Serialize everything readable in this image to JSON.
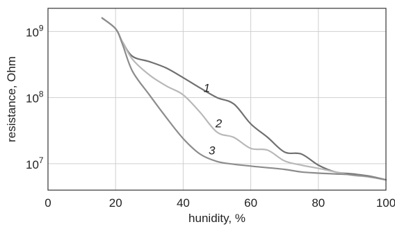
{
  "chart_data": {
    "type": "line",
    "title": "",
    "xlabel": "hunidity, %",
    "ylabel": "resistance, Ohm",
    "xlim": [
      0,
      100
    ],
    "ylim_log10": [
      6.6,
      9.35
    ],
    "y_scale": "log",
    "grid": true,
    "x_ticks": [
      0,
      20,
      40,
      60,
      80,
      100
    ],
    "y_ticks": [
      {
        "base": "10",
        "exponent": "7",
        "value": 10000000
      },
      {
        "base": "10",
        "exponent": "8",
        "value": 100000000
      },
      {
        "base": "10",
        "exponent": "9",
        "value": 1000000000
      }
    ],
    "series": [
      {
        "name": "1",
        "color": "#707070",
        "x": [
          16,
          20,
          22,
          25,
          30,
          35,
          40,
          45,
          50,
          55,
          60,
          65,
          70,
          75,
          80,
          85,
          90,
          95,
          100
        ],
        "y": [
          1600000000,
          1100000000,
          700000000,
          420000000,
          350000000,
          280000000,
          200000000,
          140000000,
          100000000,
          80000000,
          40000000,
          25000000,
          15000000,
          14000000,
          9500000,
          7500000,
          7000000,
          6500000,
          5700000
        ]
      },
      {
        "name": "2",
        "color": "#b8b8b8",
        "x": [
          16,
          20,
          22,
          25,
          30,
          35,
          40,
          45,
          50,
          55,
          60,
          65,
          70,
          75,
          80,
          85,
          90,
          95,
          100
        ],
        "y": [
          1600000000,
          1100000000,
          700000000,
          380000000,
          220000000,
          150000000,
          110000000,
          60000000,
          30000000,
          25000000,
          17000000,
          16000000,
          11000000,
          9500000,
          8500000,
          7500000,
          6700000,
          6300000,
          5700000
        ]
      },
      {
        "name": "3",
        "color": "#8c8c8c",
        "x": [
          16,
          20,
          22,
          25,
          30,
          35,
          40,
          45,
          50,
          55,
          60,
          65,
          70,
          75,
          80,
          85,
          90,
          95,
          100
        ],
        "y": [
          1600000000,
          1100000000,
          650000000,
          250000000,
          110000000,
          50000000,
          24000000,
          14000000,
          10800000,
          9800000,
          9200000,
          8700000,
          8200000,
          7500000,
          7200000,
          7000000,
          6800000,
          6400000,
          5700000
        ]
      }
    ],
    "curve_labels": [
      {
        "text": "1",
        "x": 47,
        "y": 140000000
      },
      {
        "text": "2",
        "x": 50.5,
        "y": 41000000
      },
      {
        "text": "3",
        "x": 48.5,
        "y": 16000000
      }
    ]
  }
}
